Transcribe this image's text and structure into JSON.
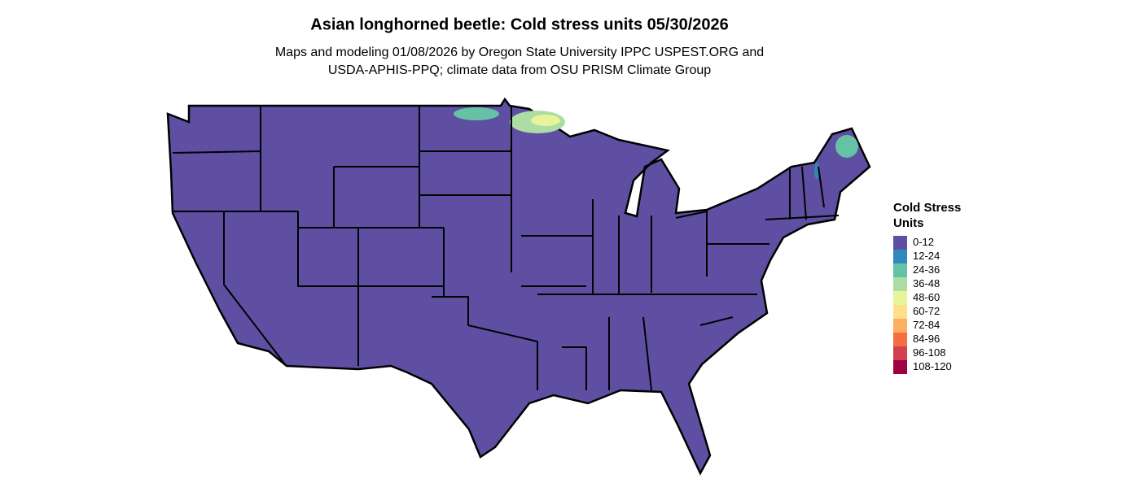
{
  "header": {
    "title": "Asian longhorned beetle: Cold stress units 05/30/2026",
    "subtitle": [
      "Maps and modeling 01/08/2026 by Oregon State University IPPC USPEST.ORG and",
      "USDA-APHIS-PPQ; climate data from OSU PRISM Climate Group"
    ]
  },
  "legend": {
    "title": [
      "Cold Stress",
      "Units"
    ],
    "items": [
      {
        "label": "0-12",
        "color": "#5E4FA2"
      },
      {
        "label": "12-24",
        "color": "#3288BD"
      },
      {
        "label": "24-36",
        "color": "#66C2A5"
      },
      {
        "label": "36-48",
        "color": "#ABDDA4"
      },
      {
        "label": "48-60",
        "color": "#E6F598"
      },
      {
        "label": "60-72",
        "color": "#FEE08B"
      },
      {
        "label": "72-84",
        "color": "#FDAE61"
      },
      {
        "label": "84-96",
        "color": "#F46D43"
      },
      {
        "label": "96-108",
        "color": "#D53E4F"
      },
      {
        "label": "108-120",
        "color": "#9E0142"
      }
    ]
  }
}
